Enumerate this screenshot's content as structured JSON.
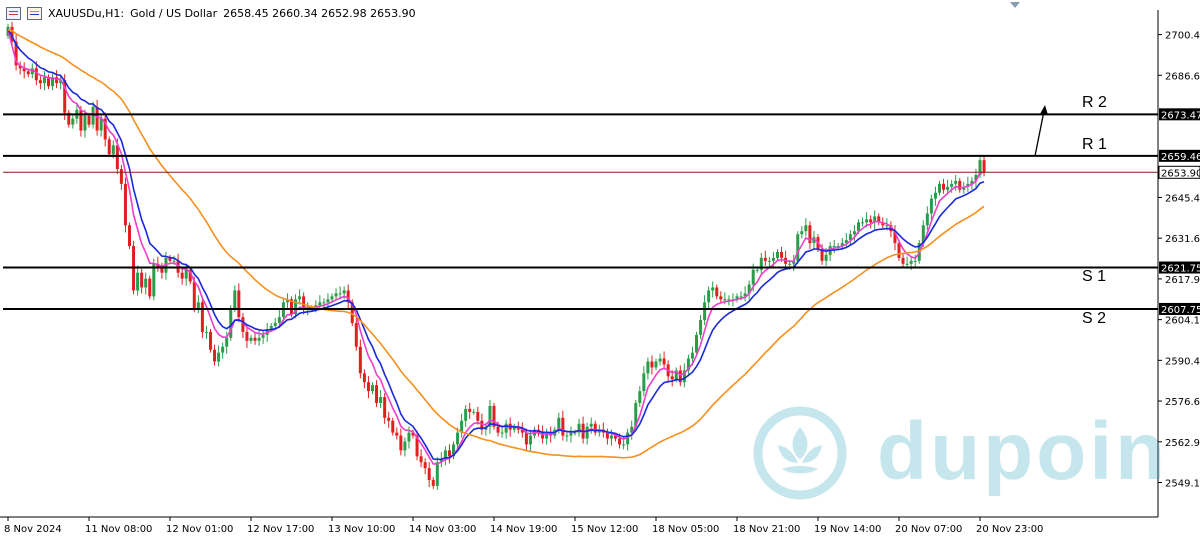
{
  "header": {
    "symbol": "XAUUSDu,H1:",
    "description": "Gold / US Dollar",
    "ohlc": "2658.45 2660.34 2652.98 2653.90"
  },
  "levels": [
    {
      "label": "R 2",
      "price": 2673.47,
      "tag": "2673.47"
    },
    {
      "label": "R 1",
      "price": 2659.46,
      "tag": "2659.46"
    },
    {
      "label": "S 1",
      "price": 2621.75,
      "tag": "2621.75"
    },
    {
      "label": "S 2",
      "price": 2607.75,
      "tag": "2607.75"
    }
  ],
  "current_price": {
    "price": 2653.9,
    "tag": "2653.90"
  },
  "watermark": "dupoin",
  "colors": {
    "bull": "#2a9d4a",
    "bear": "#e02020",
    "ma_fast": "#ee3ecb",
    "ma_mid": "#1a2adb",
    "ma_slow": "#f5901e",
    "level_line": "#000000",
    "price_line": "#8b1a1a"
  },
  "chart_data": {
    "type": "line",
    "title": "",
    "xlabel": "",
    "ylabel": "",
    "ylim": [
      2538.0,
      2710.0
    ],
    "y_ticks": [
      "2700.40",
      "2686.65",
      "2645.40",
      "2631.65",
      "2617.90",
      "2604.15",
      "2590.40",
      "2576.65",
      "2562.90",
      "2549.15"
    ],
    "y_tick_values": [
      2700.4,
      2686.65,
      2645.4,
      2631.65,
      2617.9,
      2604.15,
      2590.4,
      2576.65,
      2562.9,
      2549.15
    ],
    "x_ticks": [
      "8 Nov 2024",
      "11 Nov 08:00",
      "12 Nov 01:00",
      "12 Nov 17:00",
      "13 Nov 10:00",
      "14 Nov 03:00",
      "14 Nov 19:00",
      "15 Nov 12:00",
      "18 Nov 05:00",
      "18 Nov 21:00",
      "19 Nov 14:00",
      "20 Nov 07:00",
      "20 Nov 23:00"
    ],
    "x_tick_index": [
      0,
      20,
      40,
      60,
      80,
      100,
      120,
      140,
      160,
      180,
      200,
      220,
      240
    ],
    "close": [
      2703,
      2698,
      2690,
      2689,
      2688,
      2687,
      2689,
      2685,
      2684,
      2686,
      2683,
      2686,
      2684,
      2685,
      2674,
      2670,
      2672,
      2675,
      2668,
      2673,
      2670,
      2676,
      2668,
      2672,
      2665,
      2660,
      2663,
      2655,
      2650,
      2636,
      2629,
      2614,
      2620,
      2615,
      2618,
      2612,
      2623,
      2622,
      2620,
      2625,
      2624,
      2624,
      2620,
      2618,
      2621,
      2617,
      2608,
      2610,
      2600,
      2600,
      2594,
      2590,
      2593,
      2595,
      2598,
      2608,
      2614,
      2605,
      2600,
      2597,
      2598,
      2597,
      2598,
      2599,
      2601,
      2602,
      2603,
      2605,
      2610,
      2611,
      2606,
      2611,
      2612,
      2608,
      2608,
      2608,
      2609,
      2610,
      2610,
      2611,
      2612,
      2613,
      2613,
      2614,
      2610,
      2603,
      2595,
      2586,
      2583,
      2580,
      2582,
      2576,
      2578,
      2571,
      2570,
      2566,
      2565,
      2560,
      2563,
      2566,
      2565,
      2558,
      2556,
      2554,
      2550,
      2548,
      2556,
      2557,
      2560,
      2558,
      2562,
      2566,
      2570,
      2574,
      2573,
      2573,
      2570,
      2567,
      2568,
      2575,
      2568,
      2566,
      2566,
      2569,
      2567,
      2568,
      2567,
      2566,
      2562,
      2565,
      2567,
      2566,
      2564,
      2566,
      2565,
      2567,
      2571,
      2565,
      2565,
      2566,
      2566,
      2569,
      2564,
      2568,
      2569,
      2566,
      2567,
      2566,
      2564,
      2565,
      2564,
      2562,
      2562,
      2566,
      2568,
      2576,
      2580,
      2586,
      2590,
      2588,
      2590,
      2591,
      2589,
      2585,
      2584,
      2587,
      2583,
      2587,
      2591,
      2593,
      2599,
      2604,
      2610,
      2614,
      2615,
      2612,
      2611,
      2611,
      2611,
      2611,
      2612,
      2612,
      2613,
      2616,
      2621,
      2621,
      2625,
      2624,
      2624,
      2625,
      2627,
      2625,
      2623,
      2623,
      2624,
      2633,
      2634,
      2636,
      2630,
      2632,
      2628,
      2624,
      2626,
      2629,
      2629,
      2629,
      2630,
      2631,
      2633,
      2634,
      2637,
      2637,
      2638,
      2637,
      2639,
      2637,
      2636,
      2636,
      2634,
      2630,
      2625,
      2623,
      2623,
      2624,
      2624,
      2630,
      2636,
      2640,
      2645,
      2647,
      2650,
      2648,
      2649,
      2650,
      2651,
      2648,
      2649,
      2650,
      2651,
      2653,
      2658,
      2653.9
    ],
    "series": [
      {
        "name": "",
        "values": [
          2702,
          2696.5,
          2691.3,
          2689.9,
          2689.2,
          2688.5,
          2688.5,
          2687.6,
          2686.6,
          2686.4,
          2685.7,
          2685.8,
          2685.4,
          2685.3,
          2682.6,
          2679.5,
          2677.8,
          2677.1,
          2674.8,
          2674.3,
          2673.2,
          2673.9,
          2672.5,
          2672.3,
          2670.5,
          2667.8,
          2666.5,
          2663.6,
          2660.2,
          2654,
          2648,
          2639.5,
          2634.6,
          2629.8,
          2626.8,
          2623.2,
          2623.1,
          2622.8,
          2622,
          2622.8,
          2623.1,
          2623.3,
          2622.5,
          2621.3,
          2621.2,
          2620.2,
          2617.1,
          2615.3,
          2611.4,
          2608.6,
          2604.9,
          2601.2,
          2599.2,
          2598.2,
          2598.2,
          2600.6,
          2604,
          2604.3,
          2603.2,
          2601.6,
          2600.7,
          2599.8,
          2599.4,
          2599.3,
          2599.7,
          2600.3,
          2600.9,
          2601.9,
          2604,
          2605.8,
          2605.8,
          2607,
          2608.3,
          2608.2,
          2608.2,
          2608.1,
          2608.3,
          2608.7,
          2609,
          2609.5,
          2610.1,
          2610.8,
          2611.4,
          2612,
          2611.5,
          2609.4,
          2605.8,
          2600.5,
          2596,
          2591.8,
          2589.3,
          2585.6,
          2583.9,
          2580.2,
          2577.5,
          2574.2,
          2571.6,
          2568.2,
          2566.9,
          2566.7,
          2566.3,
          2564.3,
          2562.3,
          2560.2,
          2557.7,
          2555.4,
          2555.5,
          2556,
          2557,
          2557.3,
          2558.5,
          2560.4,
          2563,
          2566,
          2567.8,
          2569.1,
          2569.3,
          2568.9,
          2568.6,
          2570.3,
          2569.8,
          2568.8,
          2568.1,
          2568.4,
          2568.1,
          2568,
          2567.7,
          2567.2,
          2565.9,
          2565.6,
          2566,
          2565.9,
          2565.4,
          2565.6,
          2565.4,
          2565.9,
          2567.4,
          2566.8,
          2566.3,
          2566.2,
          2566.2,
          2566.9,
          2566.1,
          2566.6,
          2567.2,
          2566.9,
          2566.9,
          2566.7,
          2566,
          2565.7,
          2565.2,
          2564.4,
          2563.8,
          2564.4,
          2565.3,
          2568.3,
          2571.7,
          2576.4,
          2581.2,
          2583.3,
          2585.5,
          2587.2,
          2587.7,
          2587,
          2586.3,
          2586.5,
          2585.5,
          2586,
          2587.6,
          2589.2,
          2592.1,
          2595.6,
          2600.4,
          2605,
          2608.3,
          2609.3,
          2609.8,
          2610.2,
          2610.4,
          2610.6,
          2611,
          2611.3,
          2611.7,
          2612.9,
          2615.3,
          2616.9,
          2619.4,
          2620.7,
          2621.7,
          2622.8,
          2624.1,
          2624.4,
          2624.1,
          2623.8,
          2623.9,
          2627,
          2629.3,
          2631.7,
          2631.1,
          2631.4,
          2630.3,
          2628.2,
          2627.5,
          2628,
          2628.3,
          2628.5,
          2629,
          2629.6,
          2630.8,
          2631.9,
          2633.8,
          2634.9,
          2636,
          2636.3,
          2637.3,
          2637.2,
          2636.8,
          2636.5,
          2635.6,
          2633.7,
          2630.6,
          2628,
          2626.3,
          2625.4,
          2624.9,
          2626.6,
          2629.9,
          2633.3,
          2637.4,
          2640.8,
          2644.2,
          2645.5,
          2646.8,
          2648,
          2649.1,
          2648.7,
          2648.8,
          2649.2,
          2649.8,
          2650.9,
          2653.8,
          2653.8
        ]
      },
      {
        "name": "",
        "values": [
          2702,
          2699.8,
          2697.1,
          2695.2,
          2693.8,
          2692.5,
          2691.6,
          2690.4,
          2689.2,
          2688.7,
          2687.8,
          2687.6,
          2686.9,
          2686.6,
          2684.7,
          2682.4,
          2680.9,
          2680.2,
          2678.6,
          2678,
          2677,
          2677,
          2675.6,
          2675.1,
          2673.4,
          2671.1,
          2669.9,
          2667.3,
          2664.6,
          2659.8,
          2655.1,
          2648.2,
          2643.1,
          2637.9,
          2634.3,
          2629.9,
          2628.6,
          2627.2,
          2625.6,
          2625.5,
          2625.1,
          2624.9,
          2624.1,
          2623,
          2622.7,
          2621.7,
          2619.5,
          2618,
          2615,
          2612.5,
          2609.3,
          2605.9,
          2603.4,
          2601.8,
          2601.1,
          2602.1,
          2603.9,
          2604,
          2603.4,
          2602.4,
          2601.8,
          2601.1,
          2600.7,
          2600.5,
          2600.6,
          2600.8,
          2601.1,
          2601.7,
          2602.9,
          2604.1,
          2604.3,
          2605.3,
          2606.3,
          2606.6,
          2606.8,
          2607,
          2607.3,
          2607.7,
          2608,
          2608.4,
          2608.9,
          2609.4,
          2609.9,
          2610.5,
          2610.5,
          2609.5,
          2607.5,
          2604.2,
          2600.9,
          2597.5,
          2595,
          2591.5,
          2589.2,
          2585.7,
          2582.6,
          2579.1,
          2576,
          2572.3,
          2570.1,
          2569.1,
          2568.1,
          2566.1,
          2564.1,
          2561.9,
          2559.5,
          2557.1,
          2557,
          2557,
          2557.5,
          2557.6,
          2558.4,
          2559.8,
          2561.8,
          2564.1,
          2565.7,
          2567.1,
          2567.5,
          2567.5,
          2567.6,
          2568.9,
          2568.8,
          2568.4,
          2568,
          2568.2,
          2568,
          2568,
          2567.9,
          2567.6,
          2566.8,
          2566.5,
          2566.6,
          2566.5,
          2566.1,
          2566.1,
          2566,
          2566.1,
          2566.9,
          2566.6,
          2566.4,
          2566.3,
          2566.3,
          2566.7,
          2566.3,
          2566.5,
          2566.8,
          2566.7,
          2566.7,
          2566.6,
          2566.2,
          2566,
          2565.7,
          2565.1,
          2564.6,
          2564.8,
          2565.2,
          2566.8,
          2568.9,
          2572,
          2575.4,
          2577.4,
          2579.6,
          2581.6,
          2582.9,
          2583.2,
          2583.4,
          2583.9,
          2583.8,
          2584.3,
          2585.3,
          2586.4,
          2588.3,
          2590.7,
          2594,
          2597.5,
          2600.6,
          2602.5,
          2604,
          2605.3,
          2606.3,
          2607.1,
          2607.9,
          2608.6,
          2609.3,
          2610.3,
          2612,
          2613.3,
          2615.1,
          2616.4,
          2617.5,
          2618.7,
          2620.1,
          2620.8,
          2621.2,
          2621.5,
          2621.8,
          2623.6,
          2625.2,
          2627,
          2627.4,
          2628,
          2628,
          2627.5,
          2627.3,
          2627.5,
          2627.7,
          2627.8,
          2628.1,
          2628.5,
          2629.3,
          2630.1,
          2631.3,
          2632.2,
          2633.1,
          2633.6,
          2634.3,
          2634.6,
          2634.7,
          2634.9,
          2634.8,
          2634.2,
          2632.8,
          2631.4,
          2630.3,
          2629.4,
          2628.7,
          2628.9,
          2630.2,
          2631.9,
          2634.3,
          2636.5,
          2638.9,
          2640.5,
          2642,
          2643.4,
          2644.9,
          2645.5,
          2646,
          2646.7,
          2647.5,
          2648.4,
          2650.2,
          2650.7
        ]
      },
      {
        "name": "",
        "values": [
          2702,
          2701.7,
          2700.7,
          2699.9,
          2699.2,
          2698.4,
          2697.7,
          2697,
          2696.2,
          2695.6,
          2694.9,
          2694.3,
          2693.7,
          2693.1,
          2692.3,
          2691.2,
          2690.2,
          2689.4,
          2688.4,
          2687.6,
          2686.7,
          2686,
          2685.1,
          2684.4,
          2683.4,
          2682.2,
          2681.3,
          2680,
          2678.6,
          2676.6,
          2674.4,
          2671.6,
          2669.2,
          2666.7,
          2664.4,
          2661.8,
          2659.9,
          2658,
          2656.1,
          2654.4,
          2652.8,
          2651.2,
          2649.6,
          2648,
          2646.6,
          2645,
          2643.1,
          2641.4,
          2639.2,
          2637.2,
          2634.9,
          2632.6,
          2630.5,
          2628.5,
          2626.8,
          2625.4,
          2624.4,
          2623.2,
          2621.7,
          2620.3,
          2619,
          2617.6,
          2616.4,
          2615.2,
          2614.2,
          2613.3,
          2612.4,
          2611.8,
          2611.3,
          2610.9,
          2610.3,
          2610,
          2609.7,
          2609.3,
          2608.9,
          2608.5,
          2608.2,
          2607.9,
          2607.6,
          2607.4,
          2607.2,
          2607.1,
          2607,
          2606.9,
          2606.6,
          2606,
          2605.1,
          2603.8,
          2602.4,
          2600.8,
          2599.3,
          2597.6,
          2596.1,
          2594.3,
          2592.5,
          2590.7,
          2588.8,
          2586.8,
          2585.1,
          2583.6,
          2582.1,
          2580.4,
          2578.8,
          2577.1,
          2575.4,
          2573.7,
          2572.3,
          2571,
          2569.9,
          2568.7,
          2567.8,
          2566.9,
          2566.3,
          2565.8,
          2565.3,
          2564.9,
          2564.4,
          2563.9,
          2563.5,
          2563.3,
          2562.8,
          2562.3,
          2561.9,
          2561.6,
          2561.2,
          2560.9,
          2560.6,
          2560.3,
          2559.9,
          2559.6,
          2559.4,
          2559.2,
          2558.9,
          2558.7,
          2558.5,
          2558.4,
          2558.4,
          2558.2,
          2558.1,
          2558,
          2557.9,
          2558,
          2557.9,
          2557.9,
          2557.9,
          2557.9,
          2557.9,
          2557.9,
          2557.8,
          2557.8,
          2557.7,
          2557.6,
          2557.5,
          2557.6,
          2557.7,
          2558.1,
          2558.6,
          2559.4,
          2560.3,
          2561.1,
          2562,
          2562.8,
          2563.5,
          2564.1,
          2564.7,
          2565.4,
          2565.9,
          2566.6,
          2567.4,
          2568.2,
          2569.3,
          2570.6,
          2572.1,
          2573.7,
          2575.3,
          2576.7,
          2578.1,
          2579.4,
          2580.7,
          2582,
          2583.2,
          2584.5,
          2585.7,
          2587.1,
          2588.6,
          2590,
          2591.5,
          2593,
          2594.3,
          2595.7,
          2597.2,
          2598.5,
          2599.7,
          2600.8,
          2601.9,
          2603.4,
          2604.8,
          2606.4,
          2607.6,
          2608.9,
          2609.9,
          2610.7,
          2611.6,
          2612.5,
          2613.4,
          2614.2,
          2615.1,
          2616,
          2616.9,
          2617.9,
          2618.9,
          2619.9,
          2620.9,
          2621.7,
          2622.7,
          2623.5,
          2624.2,
          2625,
          2625.6,
          2626.1,
          2626.3,
          2626.5,
          2626.6,
          2626.8,
          2627,
          2627.4,
          2628.1,
          2628.9,
          2630,
          2631.1,
          2632.3,
          2633.3,
          2634.3,
          2635.3,
          2636.3,
          2637.1,
          2637.9,
          2638.6,
          2639.4,
          2640.3,
          2641.4,
          2642.4
        ]
      }
    ]
  }
}
